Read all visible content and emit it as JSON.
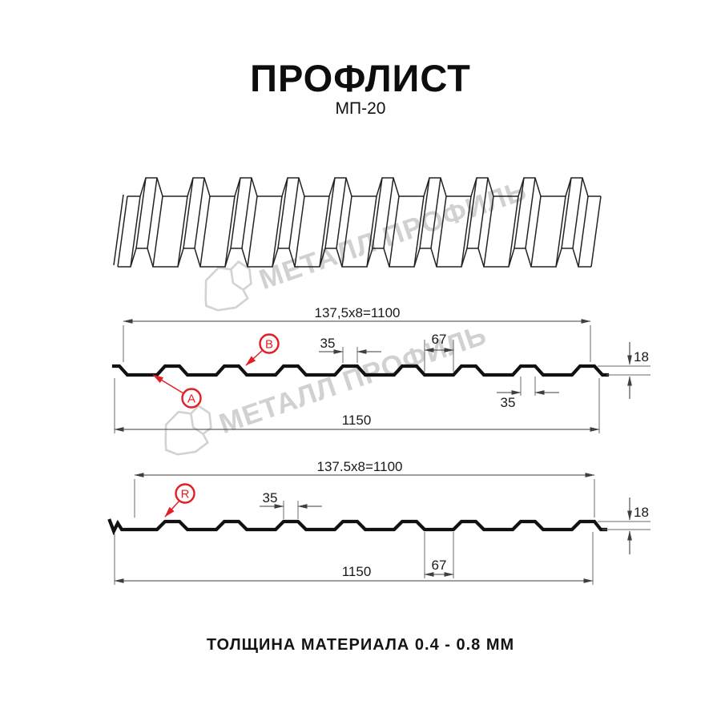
{
  "title": "ПРОФЛИСТ",
  "subtitle": "МП-20",
  "footer": "ТОЛЩИНА МАТЕРИАЛА 0.4 - 0.8 ММ",
  "watermark": {
    "text": "МЕТАЛЛ ПРОФИЛЬ"
  },
  "colors": {
    "accent_red": "#e31e24",
    "line": "#3f3f3f",
    "profile": "#111111",
    "watermark": "#c6c6c6"
  },
  "section_ab": {
    "coverage_width": "137,5x8=1100",
    "rib_top_width": "35",
    "flat_width": "67",
    "height": "18",
    "rib_bottom_width": "35",
    "overall_width": "1150",
    "label_a": "A",
    "label_b": "B"
  },
  "section_r": {
    "coverage_width": "137.5x8=1100",
    "rib_top_width": "35",
    "flat_width": "67",
    "height": "18",
    "overall_width": "1150",
    "label_r": "R"
  }
}
